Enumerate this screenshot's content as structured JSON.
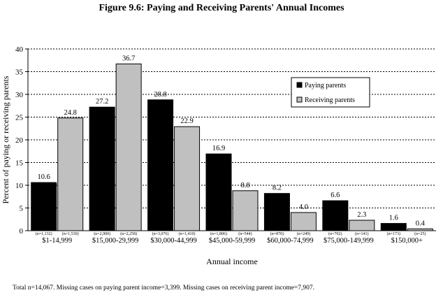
{
  "chart_data": {
    "type": "bar",
    "title": "Figure 9.6: Paying and Receiving Parents' Annual Incomes",
    "xlabel": "Annual income",
    "ylabel": "Percent of paying or receiving parents",
    "ylim": [
      0,
      40
    ],
    "yticks": [
      "0",
      "5",
      "10",
      "15",
      "20",
      "25",
      "30",
      "35",
      "40"
    ],
    "grid": true,
    "legend_position": "top-right",
    "categories": [
      "$1-14,999",
      "$15,000-29,999",
      "$30,000-44,999",
      "$45,000-59,999",
      "$60,000-74,999",
      "$75,000-149,999",
      "$150,000+"
    ],
    "series": [
      {
        "name": "Paying parents",
        "color": "#000000",
        "values": [
          10.6,
          27.2,
          28.8,
          16.9,
          8.2,
          6.6,
          1.6
        ],
        "labels": [
          "10.6",
          "27.2",
          "28.8",
          "16.9",
          "8.2",
          "6.6",
          "1.6"
        ],
        "n_labels": [
          "(n=1,132)",
          "(n=2,900)",
          "(n=3,076)",
          "(n=1,806)",
          "(n=870)",
          "(n=702)",
          "(n=173)"
        ]
      },
      {
        "name": "Receiving parents",
        "color": "#c0c0c0",
        "values": [
          24.8,
          36.7,
          22.9,
          8.8,
          4.0,
          2.3,
          0.4
        ],
        "labels": [
          "24.8",
          "36.7",
          "22.9",
          "8.8",
          "4.0",
          "2.3",
          "0.4"
        ],
        "n_labels": [
          "(n=1,530)",
          "(n=2,258)",
          "(n=1,410)",
          "(n=544)",
          "(n=249)",
          "(n=141)",
          "(n=25)"
        ]
      }
    ]
  },
  "footnote": "Total n=14,067.  Missing cases on paying parent income=3,399.  Missing cases on receiving parent income=7,907."
}
